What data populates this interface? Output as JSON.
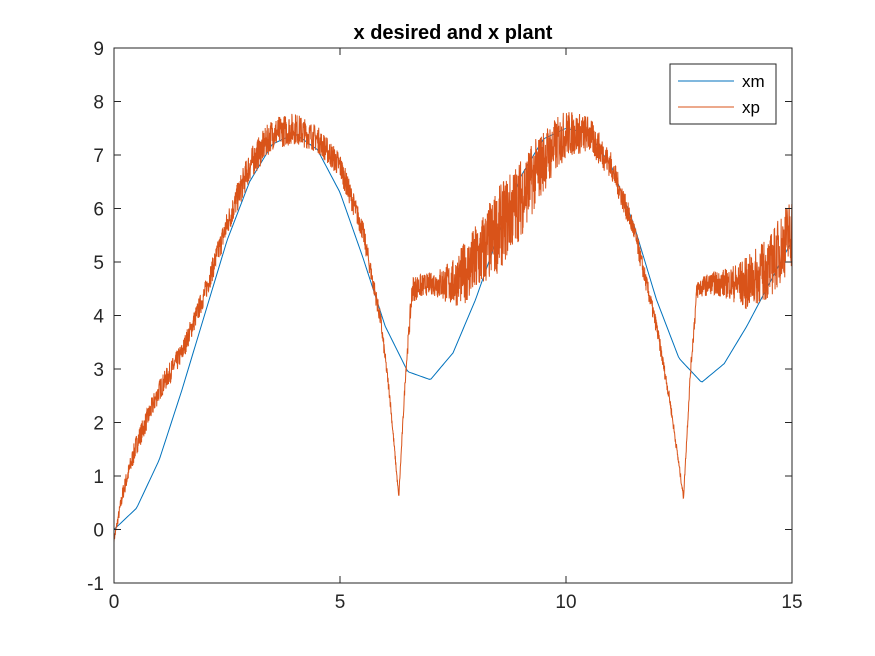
{
  "chart_data": {
    "type": "line",
    "title": "x desired and x plant",
    "xlabel": "",
    "ylabel": "",
    "xlim": [
      0,
      15
    ],
    "ylim": [
      -1,
      9
    ],
    "x_ticks": [
      "0",
      "5",
      "10",
      "15"
    ],
    "y_ticks": [
      "-1",
      "0",
      "1",
      "2",
      "3",
      "4",
      "5",
      "6",
      "7",
      "8",
      "9"
    ],
    "grid": false,
    "legend_position": "top-right",
    "series": [
      {
        "name": "xm",
        "color": "#0072BD",
        "x": [
          0,
          0.5,
          1,
          1.5,
          2,
          2.5,
          3,
          3.5,
          4,
          4.5,
          5,
          5.5,
          6,
          6.5,
          7,
          7.5,
          8,
          8.5,
          9,
          9.5,
          10,
          10.5,
          11,
          11.5,
          12,
          12.5,
          13,
          13.5,
          14,
          14.5,
          15
        ],
        "values": [
          0,
          0.4,
          1.3,
          2.6,
          4.0,
          5.4,
          6.5,
          7.2,
          7.4,
          7.1,
          6.3,
          5.1,
          3.8,
          2.95,
          2.8,
          3.3,
          4.3,
          5.5,
          6.6,
          7.3,
          7.5,
          7.4,
          6.8,
          5.7,
          4.3,
          3.2,
          2.75,
          3.1,
          3.8,
          4.6,
          5.4
        ]
      },
      {
        "name": "xp",
        "color": "#D95319",
        "x": [
          0,
          0.2,
          0.5,
          1,
          1.5,
          2,
          2.5,
          3,
          3.5,
          4,
          4.5,
          5,
          5.5,
          5.9,
          6.1,
          6.3,
          6.45,
          6.6,
          7,
          7.5,
          8,
          8.5,
          9,
          9.5,
          10,
          10.5,
          11,
          11.5,
          12,
          12.3,
          12.6,
          12.75,
          12.9,
          13.2,
          13.6,
          14,
          14.5,
          15
        ],
        "values": [
          -0.2,
          0.7,
          1.6,
          2.6,
          3.3,
          4.4,
          5.7,
          6.8,
          7.4,
          7.5,
          7.3,
          6.8,
          5.6,
          3.9,
          2.5,
          0.6,
          2.9,
          4.5,
          4.6,
          4.6,
          5.0,
          5.6,
          6.2,
          6.9,
          7.4,
          7.4,
          6.8,
          5.6,
          3.8,
          2.4,
          0.6,
          2.9,
          4.5,
          4.6,
          4.6,
          4.6,
          4.9,
          5.6
        ],
        "noise_band": [
          0.05,
          0.15,
          0.2,
          0.2,
          0.2,
          0.2,
          0.25,
          0.3,
          0.3,
          0.3,
          0.25,
          0.25,
          0.2,
          0.15,
          0.1,
          0.05,
          0.1,
          0.25,
          0.2,
          0.45,
          0.7,
          0.8,
          0.75,
          0.6,
          0.45,
          0.35,
          0.25,
          0.2,
          0.15,
          0.1,
          0.05,
          0.1,
          0.2,
          0.2,
          0.3,
          0.5,
          0.6,
          0.7
        ]
      }
    ]
  }
}
